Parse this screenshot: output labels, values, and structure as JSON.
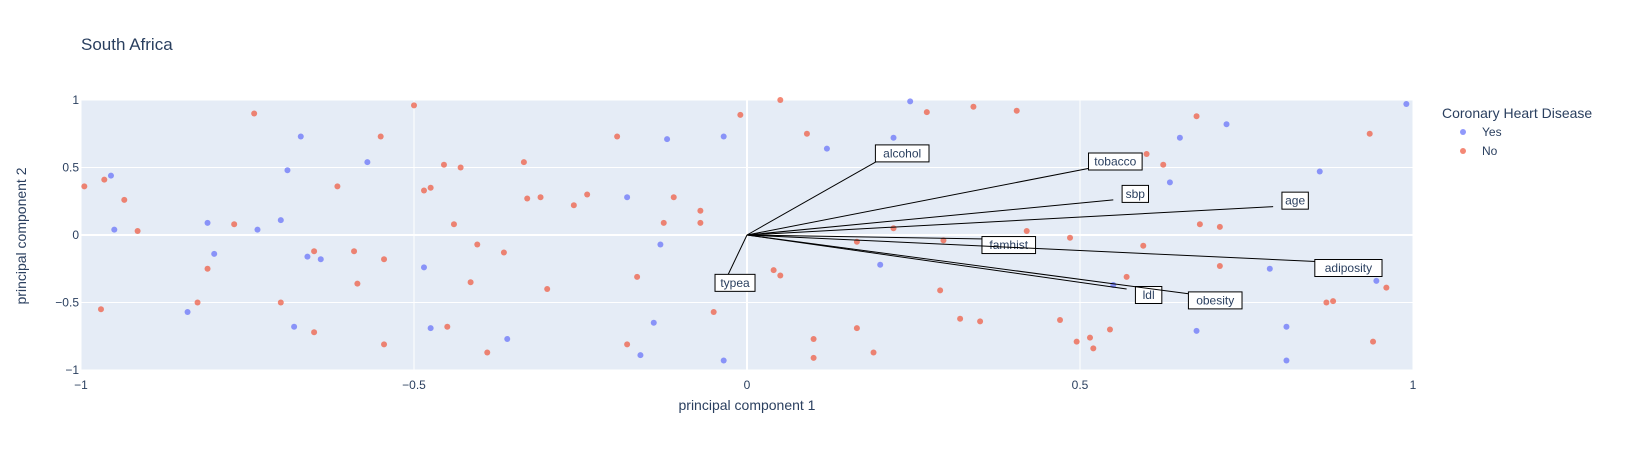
{
  "chart_data": {
    "type": "scatter",
    "title": "South Africa",
    "xlabel": "principal component 1",
    "ylabel": "principal component 2",
    "xlim": [
      -1,
      1
    ],
    "ylim": [
      -1,
      1
    ],
    "xticks": [
      -1,
      -0.5,
      0,
      0.5,
      1
    ],
    "yticks": [
      -1,
      -0.5,
      0,
      0.5,
      1
    ],
    "xtick_labels": [
      "−1",
      "−0.5",
      "0",
      "0.5",
      "1"
    ],
    "ytick_labels": [
      "−1",
      "−0.5",
      "0",
      "0.5",
      "1"
    ],
    "grid": true,
    "legend": {
      "title": "Coronary Heart Disease",
      "placement": "right"
    },
    "series": [
      {
        "name": "Yes",
        "color": "#636efa",
        "points": [
          [
            -0.95,
            0.04
          ],
          [
            -0.955,
            0.44
          ],
          [
            -0.84,
            -0.57
          ],
          [
            -0.81,
            0.09
          ],
          [
            -0.8,
            -0.14
          ],
          [
            -0.735,
            0.04
          ],
          [
            -0.7,
            0.11
          ],
          [
            -0.69,
            0.48
          ],
          [
            -0.68,
            -0.68
          ],
          [
            -0.67,
            0.73
          ],
          [
            -0.66,
            -0.16
          ],
          [
            -0.64,
            -0.18
          ],
          [
            -0.57,
            0.54
          ],
          [
            -0.485,
            -0.24
          ],
          [
            -0.475,
            -0.69
          ],
          [
            -0.36,
            -0.77
          ],
          [
            -0.18,
            0.28
          ],
          [
            -0.16,
            -0.89
          ],
          [
            -0.14,
            -0.65
          ],
          [
            -0.13,
            -0.07
          ],
          [
            -0.12,
            0.71
          ],
          [
            -0.035,
            0.73
          ],
          [
            -0.035,
            -0.93
          ],
          [
            0.12,
            0.64
          ],
          [
            0.2,
            -0.22
          ],
          [
            0.22,
            0.72
          ],
          [
            0.245,
            0.99
          ],
          [
            0.55,
            -0.37
          ],
          [
            0.635,
            0.39
          ],
          [
            0.65,
            0.72
          ],
          [
            0.675,
            -0.71
          ],
          [
            0.72,
            0.82
          ],
          [
            0.785,
            -0.25
          ],
          [
            0.81,
            -0.68
          ],
          [
            0.81,
            -0.93
          ],
          [
            0.86,
            0.47
          ],
          [
            0.945,
            -0.34
          ],
          [
            0.99,
            0.97
          ]
        ]
      },
      {
        "name": "No",
        "color": "#ef553b",
        "points": [
          [
            -0.995,
            0.36
          ],
          [
            -0.97,
            -0.55
          ],
          [
            -0.965,
            0.41
          ],
          [
            -0.935,
            0.26
          ],
          [
            -0.915,
            0.03
          ],
          [
            -0.825,
            -0.5
          ],
          [
            -0.81,
            -0.25
          ],
          [
            -0.77,
            0.08
          ],
          [
            -0.74,
            0.9
          ],
          [
            -0.7,
            -0.5
          ],
          [
            -0.65,
            -0.12
          ],
          [
            -0.65,
            -0.72
          ],
          [
            -0.615,
            0.36
          ],
          [
            -0.59,
            -0.12
          ],
          [
            -0.585,
            -0.36
          ],
          [
            -0.55,
            0.73
          ],
          [
            -0.545,
            -0.18
          ],
          [
            -0.545,
            -0.81
          ],
          [
            -0.5,
            0.96
          ],
          [
            -0.485,
            0.33
          ],
          [
            -0.475,
            0.35
          ],
          [
            -0.455,
            0.52
          ],
          [
            -0.45,
            -0.68
          ],
          [
            -0.44,
            0.08
          ],
          [
            -0.43,
            0.5
          ],
          [
            -0.415,
            -0.35
          ],
          [
            -0.405,
            -0.07
          ],
          [
            -0.39,
            -0.87
          ],
          [
            -0.365,
            -0.13
          ],
          [
            -0.335,
            0.54
          ],
          [
            -0.33,
            0.27
          ],
          [
            -0.31,
            0.28
          ],
          [
            -0.3,
            -0.4
          ],
          [
            -0.26,
            0.22
          ],
          [
            -0.24,
            0.3
          ],
          [
            -0.195,
            0.73
          ],
          [
            -0.18,
            -0.81
          ],
          [
            -0.165,
            -0.31
          ],
          [
            -0.125,
            0.09
          ],
          [
            -0.11,
            0.28
          ],
          [
            -0.07,
            0.09
          ],
          [
            -0.07,
            0.18
          ],
          [
            -0.05,
            -0.57
          ],
          [
            -0.01,
            0.89
          ],
          [
            0.04,
            -0.26
          ],
          [
            0.05,
            -0.3
          ],
          [
            0.05,
            1.0
          ],
          [
            0.09,
            0.75
          ],
          [
            0.1,
            -0.77
          ],
          [
            0.1,
            -0.91
          ],
          [
            0.165,
            -0.69
          ],
          [
            0.165,
            -0.05
          ],
          [
            0.19,
            -0.87
          ],
          [
            0.22,
            0.05
          ],
          [
            0.27,
            0.91
          ],
          [
            0.29,
            -0.41
          ],
          [
            0.295,
            -0.04
          ],
          [
            0.32,
            -0.62
          ],
          [
            0.34,
            0.95
          ],
          [
            0.35,
            -0.64
          ],
          [
            0.405,
            0.92
          ],
          [
            0.42,
            0.03
          ],
          [
            0.47,
            -0.63
          ],
          [
            0.485,
            -0.02
          ],
          [
            0.495,
            -0.79
          ],
          [
            0.515,
            -0.76
          ],
          [
            0.52,
            -0.84
          ],
          [
            0.545,
            -0.7
          ],
          [
            0.57,
            -0.31
          ],
          [
            0.595,
            -0.08
          ],
          [
            0.6,
            0.6
          ],
          [
            0.625,
            0.52
          ],
          [
            0.675,
            0.88
          ],
          [
            0.68,
            0.08
          ],
          [
            0.71,
            0.06
          ],
          [
            0.71,
            -0.23
          ],
          [
            0.87,
            -0.5
          ],
          [
            0.88,
            -0.49
          ],
          [
            0.935,
            0.75
          ],
          [
            0.94,
            -0.79
          ],
          [
            0.96,
            -0.39
          ]
        ]
      }
    ],
    "loadings": [
      {
        "name": "alcohol",
        "x": 0.2,
        "y": 0.56
      },
      {
        "name": "tobacco",
        "x": 0.52,
        "y": 0.5
      },
      {
        "name": "sbp",
        "x": 0.55,
        "y": 0.26
      },
      {
        "name": "age",
        "x": 0.79,
        "y": 0.21
      },
      {
        "name": "famhist",
        "x": 0.36,
        "y": -0.03
      },
      {
        "name": "adiposity",
        "x": 0.87,
        "y": -0.2
      },
      {
        "name": "ldl",
        "x": 0.57,
        "y": -0.4
      },
      {
        "name": "obesity",
        "x": 0.67,
        "y": -0.44
      },
      {
        "name": "typea",
        "x": -0.03,
        "y": -0.31
      }
    ]
  }
}
